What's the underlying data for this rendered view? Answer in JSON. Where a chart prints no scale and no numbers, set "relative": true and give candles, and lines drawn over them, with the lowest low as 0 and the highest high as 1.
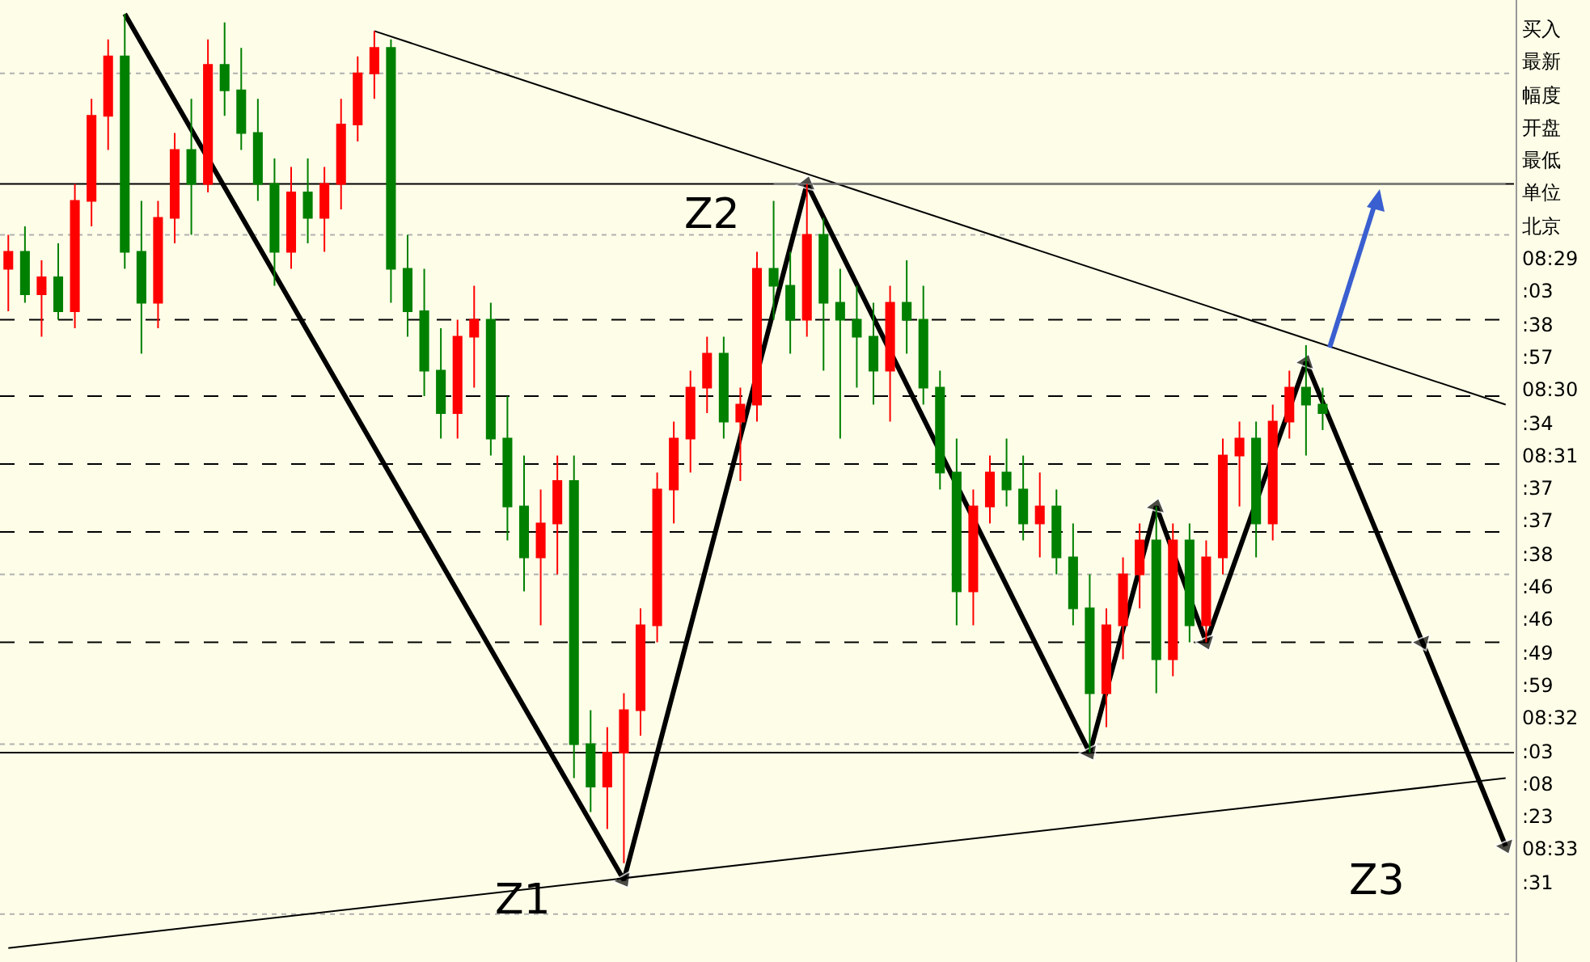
{
  "chart_data": {
    "type": "candlestick",
    "relative": true,
    "categories": [
      null,
      null,
      null,
      null,
      null,
      null,
      null,
      null,
      null,
      null,
      null,
      null,
      null,
      null,
      null,
      null,
      null,
      null,
      null,
      null,
      null,
      null,
      null,
      null,
      null,
      null,
      null,
      null,
      null,
      null,
      null,
      null,
      null,
      null,
      null,
      null,
      null,
      null,
      null,
      null,
      null,
      null,
      null,
      null,
      null,
      null,
      null,
      null,
      null,
      null,
      null,
      null,
      null,
      null,
      null,
      null,
      null,
      null,
      null,
      null,
      null,
      null,
      null,
      null,
      null,
      null,
      null,
      null,
      null,
      null,
      null,
      null,
      null,
      null,
      null,
      null,
      null,
      null,
      null,
      null,
      null,
      null,
      null,
      null,
      null,
      null,
      null,
      null,
      null,
      null,
      null
    ],
    "colors": [
      "#ff0000",
      "#008000",
      "#ff0000",
      "#008000",
      "#ff0000",
      "#ff0000",
      "#ff0000",
      "#008000",
      "#008000",
      "#ff0000",
      "#ff0000",
      "#008000",
      "#ff0000",
      "#008000",
      "#008000",
      "#008000",
      "#008000",
      "#ff0000",
      "#008000",
      "#ff0000",
      "#ff0000",
      "#ff0000",
      "#ff0000",
      "#008000",
      "#008000",
      "#008000",
      "#008000",
      "#ff0000",
      "#ff0000",
      "#008000",
      "#008000",
      "#008000",
      "#ff0000",
      "#ff0000",
      "#008000",
      "#008000",
      "#ff0000",
      "#ff0000",
      "#ff0000",
      "#ff0000",
      "#ff0000",
      "#ff0000",
      "#ff0000",
      "#008000",
      "#ff0000",
      "#ff0000",
      "#008000",
      "#008000",
      "#ff0000",
      "#008000",
      "#008000",
      "#008000",
      "#008000",
      "#ff0000",
      "#008000",
      "#008000",
      "#008000",
      "#008000",
      "#ff0000",
      "#ff0000",
      "#008000",
      "#008000",
      "#ff0000",
      "#008000",
      "#008000",
      "#008000",
      "#ff0000",
      "#ff0000",
      "#ff0000",
      "#008000",
      "#ff0000",
      "#008000",
      "#ff0000",
      "#ff0000",
      "#ff0000",
      "#008000",
      "#ff0000",
      "#ff0000",
      "#008000",
      "#008000",
      null,
      null,
      null,
      null,
      null,
      null,
      null,
      null,
      null,
      null,
      null
    ],
    "ohlc": [
      [
        0.7,
        0.74,
        0.65,
        0.72
      ],
      [
        0.72,
        0.75,
        0.66,
        0.67
      ],
      [
        0.67,
        0.71,
        0.62,
        0.69
      ],
      [
        0.69,
        0.73,
        0.64,
        0.65
      ],
      [
        0.65,
        0.8,
        0.63,
        0.78
      ],
      [
        0.78,
        0.9,
        0.75,
        0.88
      ],
      [
        0.88,
        0.97,
        0.84,
        0.95
      ],
      [
        0.95,
        1.0,
        0.7,
        0.72
      ],
      [
        0.72,
        0.78,
        0.6,
        0.66
      ],
      [
        0.66,
        0.78,
        0.63,
        0.76
      ],
      [
        0.76,
        0.86,
        0.73,
        0.84
      ],
      [
        0.84,
        0.9,
        0.74,
        0.8
      ],
      [
        0.8,
        0.97,
        0.79,
        0.94
      ],
      [
        0.94,
        0.99,
        0.88,
        0.91
      ],
      [
        0.91,
        0.96,
        0.84,
        0.86
      ],
      [
        0.86,
        0.9,
        0.78,
        0.8
      ],
      [
        0.8,
        0.83,
        0.68,
        0.72
      ],
      [
        0.72,
        0.82,
        0.7,
        0.79
      ],
      [
        0.79,
        0.83,
        0.73,
        0.76
      ],
      [
        0.76,
        0.82,
        0.72,
        0.8
      ],
      [
        0.8,
        0.9,
        0.77,
        0.87
      ],
      [
        0.87,
        0.95,
        0.85,
        0.93
      ],
      [
        0.93,
        0.98,
        0.9,
        0.96
      ],
      [
        0.96,
        0.97,
        0.66,
        0.7
      ],
      [
        0.7,
        0.74,
        0.62,
        0.65
      ],
      [
        0.65,
        0.7,
        0.55,
        0.58
      ],
      [
        0.58,
        0.63,
        0.5,
        0.53
      ],
      [
        0.53,
        0.64,
        0.5,
        0.62
      ],
      [
        0.62,
        0.68,
        0.56,
        0.64
      ],
      [
        0.64,
        0.66,
        0.48,
        0.5
      ],
      [
        0.5,
        0.55,
        0.38,
        0.42
      ],
      [
        0.42,
        0.48,
        0.32,
        0.36
      ],
      [
        0.36,
        0.44,
        0.28,
        0.4
      ],
      [
        0.4,
        0.48,
        0.34,
        0.45
      ],
      [
        0.45,
        0.48,
        0.1,
        0.14
      ],
      [
        0.14,
        0.18,
        0.06,
        0.09
      ],
      [
        0.09,
        0.16,
        0.04,
        0.13
      ],
      [
        0.13,
        0.2,
        0.0,
        0.18
      ],
      [
        0.18,
        0.3,
        0.15,
        0.28
      ],
      [
        0.28,
        0.46,
        0.26,
        0.44
      ],
      [
        0.44,
        0.52,
        0.4,
        0.5
      ],
      [
        0.5,
        0.58,
        0.46,
        0.56
      ],
      [
        0.56,
        0.62,
        0.53,
        0.6
      ],
      [
        0.6,
        0.62,
        0.5,
        0.52
      ],
      [
        0.52,
        0.56,
        0.45,
        0.54
      ],
      [
        0.54,
        0.72,
        0.52,
        0.7
      ],
      [
        0.7,
        0.78,
        0.64,
        0.68
      ],
      [
        0.68,
        0.72,
        0.6,
        0.64
      ],
      [
        0.64,
        0.8,
        0.62,
        0.74
      ],
      [
        0.74,
        0.76,
        0.58,
        0.66
      ],
      [
        0.66,
        0.7,
        0.5,
        0.64
      ],
      [
        0.64,
        0.68,
        0.56,
        0.62
      ],
      [
        0.62,
        0.66,
        0.54,
        0.58
      ],
      [
        0.58,
        0.68,
        0.52,
        0.66
      ],
      [
        0.66,
        0.71,
        0.6,
        0.64
      ],
      [
        0.64,
        0.68,
        0.54,
        0.56
      ],
      [
        0.56,
        0.58,
        0.44,
        0.46
      ],
      [
        0.46,
        0.5,
        0.28,
        0.32
      ],
      [
        0.32,
        0.44,
        0.28,
        0.42
      ],
      [
        0.42,
        0.48,
        0.4,
        0.46
      ],
      [
        0.46,
        0.5,
        0.42,
        0.44
      ],
      [
        0.44,
        0.48,
        0.38,
        0.4
      ],
      [
        0.4,
        0.46,
        0.36,
        0.42
      ],
      [
        0.42,
        0.44,
        0.34,
        0.36
      ],
      [
        0.36,
        0.4,
        0.28,
        0.3
      ],
      [
        0.3,
        0.34,
        0.13,
        0.2
      ],
      [
        0.2,
        0.3,
        0.16,
        0.28
      ],
      [
        0.28,
        0.36,
        0.24,
        0.34
      ],
      [
        0.34,
        0.4,
        0.3,
        0.38
      ],
      [
        0.38,
        0.42,
        0.2,
        0.24
      ],
      [
        0.24,
        0.4,
        0.22,
        0.38
      ],
      [
        0.38,
        0.4,
        0.26,
        0.28
      ],
      [
        0.28,
        0.38,
        0.26,
        0.36
      ],
      [
        0.36,
        0.5,
        0.34,
        0.48
      ],
      [
        0.48,
        0.52,
        0.42,
        0.5
      ],
      [
        0.5,
        0.52,
        0.36,
        0.4
      ],
      [
        0.4,
        0.54,
        0.38,
        0.52
      ],
      [
        0.52,
        0.58,
        0.5,
        0.56
      ],
      [
        0.56,
        0.61,
        0.48,
        0.54
      ],
      [
        0.54,
        0.56,
        0.51,
        0.53
      ],
      null,
      null,
      null,
      null,
      null,
      null,
      null,
      null,
      null,
      null,
      null
    ],
    "series": [
      {
        "type": "line",
        "color": "#000000",
        "marker": "triangle",
        "values": [
          null,
          null,
          null,
          null,
          null,
          null,
          null,
          1.0,
          null,
          null,
          null,
          null,
          null,
          null,
          null,
          null,
          null,
          null,
          null,
          null,
          null,
          null,
          null,
          null,
          null,
          null,
          null,
          null,
          null,
          null,
          null,
          null,
          null,
          null,
          null,
          null,
          null,
          -0.02,
          null,
          null,
          null,
          null,
          null,
          null,
          null,
          null,
          null,
          null,
          0.8,
          null,
          null,
          null,
          null,
          null,
          null,
          null,
          null,
          null,
          null,
          null,
          null,
          null,
          null,
          null,
          null,
          0.13,
          null,
          null,
          null,
          0.42,
          null,
          null,
          0.26,
          null,
          null,
          null,
          null,
          null,
          0.59,
          null,
          null,
          null,
          null,
          null,
          null,
          0.26,
          null,
          null,
          null,
          null,
          0.02
        ]
      },
      {
        "type": "line",
        "color": "#000000",
        "values": [
          null,
          null,
          null,
          null,
          null,
          null,
          null,
          null,
          null,
          null,
          null,
          null,
          null,
          null,
          null,
          null,
          null,
          null,
          null,
          null,
          null,
          null,
          0.98,
          null,
          null,
          null,
          null,
          null,
          null,
          null,
          null,
          null,
          null,
          null,
          null,
          null,
          null,
          null,
          null,
          null,
          null,
          null,
          null,
          null,
          null,
          null,
          null,
          null,
          null,
          null,
          null,
          null,
          null,
          null,
          null,
          null,
          null,
          null,
          null,
          null,
          null,
          null,
          null,
          null,
          null,
          null,
          null,
          null,
          null,
          null,
          null,
          null,
          null,
          null,
          null,
          null,
          null,
          null,
          null,
          null,
          null,
          null,
          null,
          null,
          null,
          null,
          null,
          null,
          null,
          null,
          0.54
        ]
      },
      {
        "type": "line",
        "color": "#000000",
        "values": [
          -0.1,
          null,
          null,
          null,
          null,
          null,
          null,
          null,
          null,
          null,
          null,
          null,
          null,
          null,
          null,
          null,
          null,
          null,
          null,
          null,
          null,
          null,
          null,
          null,
          null,
          null,
          null,
          null,
          null,
          null,
          null,
          null,
          null,
          null,
          null,
          null,
          null,
          null,
          null,
          null,
          null,
          null,
          null,
          null,
          null,
          null,
          null,
          null,
          null,
          null,
          null,
          null,
          null,
          null,
          null,
          null,
          null,
          null,
          null,
          null,
          null,
          null,
          null,
          null,
          null,
          null,
          null,
          null,
          null,
          null,
          null,
          null,
          null,
          null,
          null,
          null,
          null,
          null,
          null,
          null,
          null,
          null,
          null,
          null,
          null,
          null,
          null,
          null,
          null,
          null,
          0.1
        ]
      },
      {
        "type": "line",
        "color": "#808080",
        "values": [
          null,
          null,
          null,
          null,
          null,
          null,
          null,
          null,
          null,
          null,
          null,
          null,
          null,
          null,
          null,
          null,
          null,
          null,
          null,
          null,
          null,
          null,
          null,
          null,
          null,
          null,
          null,
          null,
          null,
          null,
          null,
          null,
          null,
          null,
          null,
          null,
          null,
          null,
          null,
          null,
          null,
          null,
          null,
          null,
          null,
          null,
          0.8,
          null,
          null,
          null,
          null,
          null,
          null,
          null,
          null,
          null,
          null,
          null,
          null,
          null,
          null,
          null,
          null,
          null,
          null,
          null,
          null,
          null,
          null,
          null,
          null,
          null,
          null,
          null,
          null,
          null,
          null,
          null,
          null,
          null,
          null,
          null,
          null,
          null,
          null,
          null,
          null,
          null,
          null,
          null,
          0.8
        ]
      }
    ],
    "ref_lines": [
      {
        "axis": "y",
        "value": 0.8,
        "color": "#000000",
        "line_style": "solid"
      },
      {
        "axis": "y",
        "value": 0.13,
        "color": "#000000",
        "line_style": "solid"
      },
      {
        "axis": "y",
        "value": 0.64,
        "color": "#000000",
        "line_style": "dashed"
      },
      {
        "axis": "y",
        "value": 0.55,
        "color": "#000000",
        "line_style": "dashed"
      },
      {
        "axis": "y",
        "value": 0.47,
        "color": "#000000",
        "line_style": "dashed"
      },
      {
        "axis": "y",
        "value": 0.39,
        "color": "#000000",
        "line_style": "dashed"
      },
      {
        "axis": "y",
        "value": 0.26,
        "color": "#000000",
        "line_style": "dashed"
      },
      {
        "axis": "y",
        "value": 0.93,
        "color": "#b0b0b0",
        "line_style": "dotted"
      },
      {
        "axis": "y",
        "value": 0.74,
        "color": "#b0b0b0",
        "line_style": "dotted"
      },
      {
        "axis": "y",
        "value": 0.34,
        "color": "#b0b0b0",
        "line_style": "dotted"
      },
      {
        "axis": "y",
        "value": 0.14,
        "color": "#b0b0b0",
        "line_style": "dotted"
      },
      {
        "axis": "y",
        "value": -0.06,
        "color": "#b0b0b0",
        "line_style": "dotted"
      }
    ],
    "annotations": [
      "Z1",
      "Z2",
      "Z3",
      "买入",
      "最新",
      "幅度",
      "开盘",
      "最低",
      "单位",
      "北京",
      "08:29",
      ":03",
      ":38",
      ":57",
      "08:30",
      ":34",
      "08:31",
      ":37",
      ":37",
      ":38",
      ":46",
      ":46",
      ":49",
      ":59",
      "08:32",
      ":03",
      ":08",
      ":23",
      "08:33",
      ":31"
    ]
  }
}
